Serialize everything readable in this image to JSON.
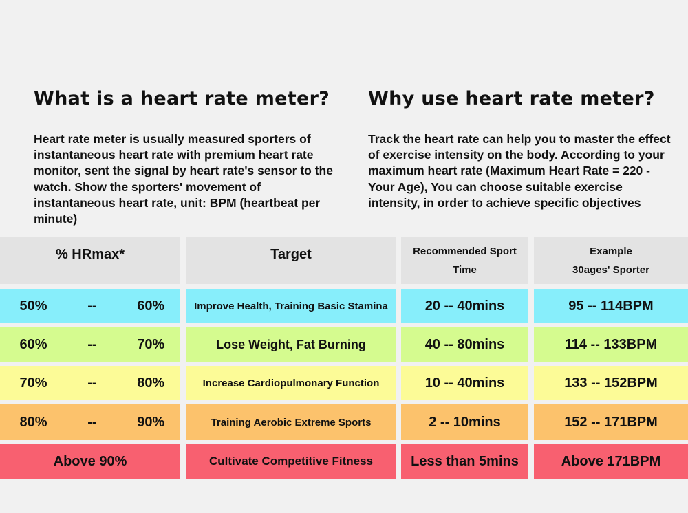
{
  "left": {
    "title": "What is a heart rate meter?",
    "body": "Heart rate meter is usually measured sporters of instantaneous heart rate with premium heart rate monitor, sent the signal by heart rate's sensor to the watch. Show the sporters' movement of instantaneous heart rate, unit: BPM (heartbeat per minute)"
  },
  "right": {
    "title": "Why use heart rate meter?",
    "body": "Track the heart rate can help you to master the effect of exercise intensity on the body. According to your maximum heart rate (Maximum Heart Rate = 220 -Your Age), You can choose suitable exercise intensity, in order to achieve specific objectives"
  },
  "table": {
    "headers": {
      "hrmax": "% HRmax*",
      "target": "Target",
      "time_line1": "Recommended  Sport",
      "time_line2": "Time",
      "example_line1": "Example",
      "example_line2": "30ages'  Sporter"
    },
    "rows": [
      {
        "hrmax": "50%   --   60%",
        "target": "Improve Health, Training Basic Stamina",
        "time": "20 -- 40mins",
        "example": "95 -- 114BPM"
      },
      {
        "hrmax": "60%   --   70%",
        "target": "Lose Weight, Fat Burning",
        "time": "40 -- 80mins",
        "example": "114 -- 133BPM"
      },
      {
        "hrmax": "70%   --   80%",
        "target": "Increase  Cardiopulmonary  Function",
        "time": "10 -- 40mins",
        "example": "133 -- 152BPM"
      },
      {
        "hrmax": "80%   --   90%",
        "target": "Training  Aerobic  Extreme  Sports",
        "time": "2 -- 10mins",
        "example": "152 -- 171BPM"
      },
      {
        "hrmax": "Above 90%",
        "target": "Cultivate Competitive Fitness",
        "time": "Less than 5mins",
        "example": "Above 171BPM"
      }
    ],
    "colors": [
      "#87eefb",
      "#d5fb8f",
      "#fcfb97",
      "#fcc26c",
      "#f86070"
    ]
  }
}
